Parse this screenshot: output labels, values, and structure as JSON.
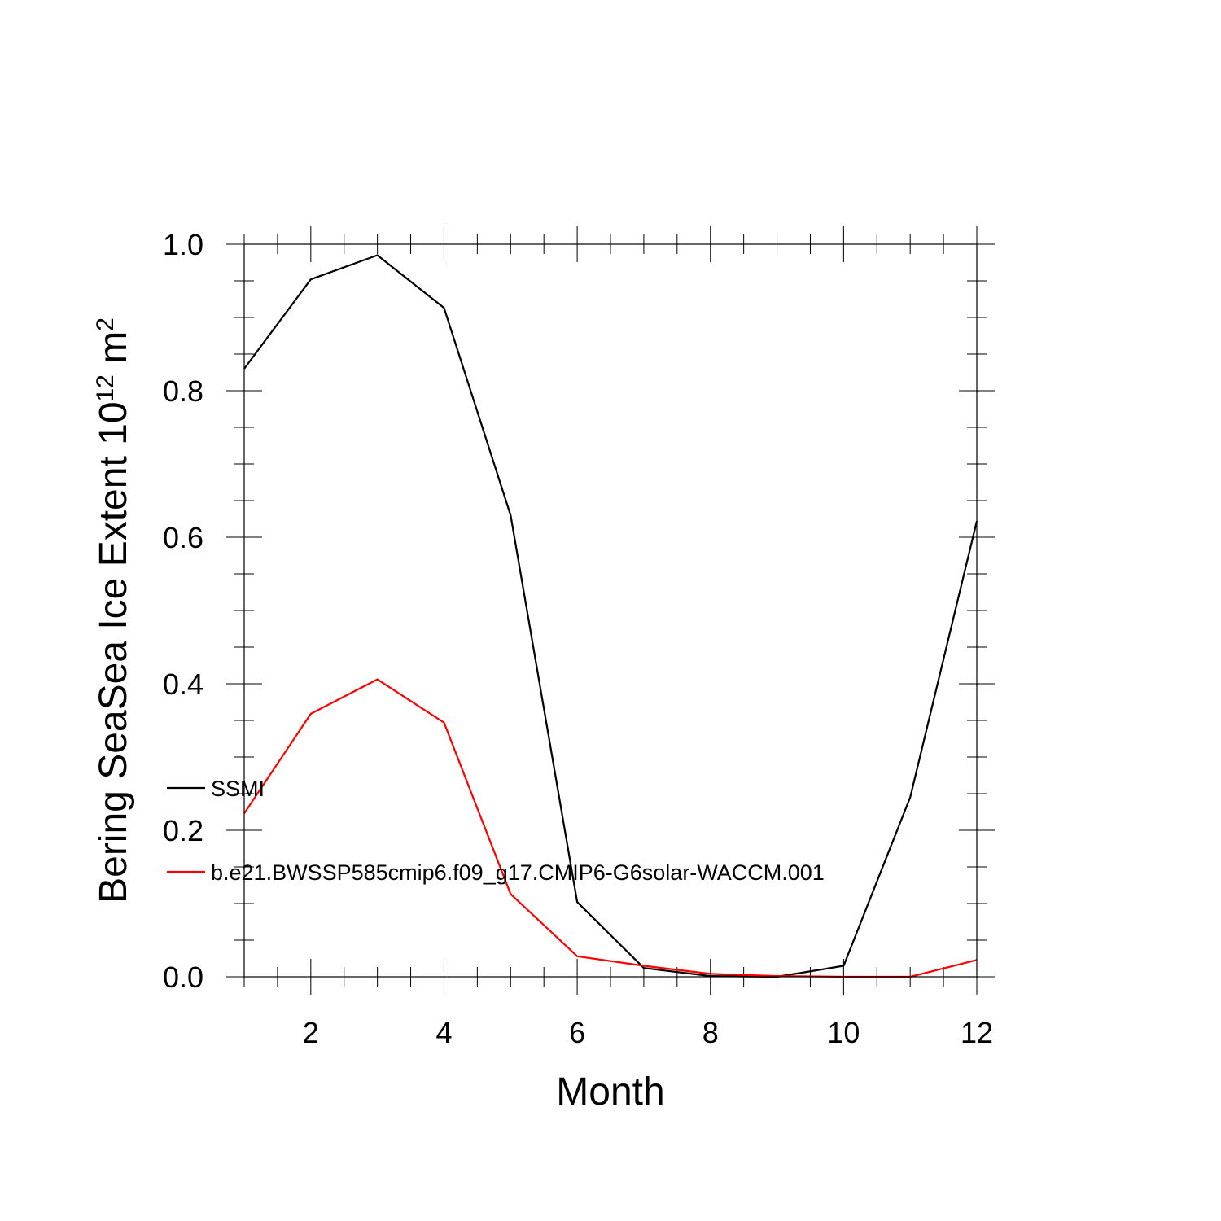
{
  "chart_data": {
    "type": "line",
    "title": "",
    "xlabel": "Month",
    "ylabel_main": "Bering SeaSea Ice Extent 10",
    "ylabel_exponent": "12",
    "ylabel_unit": " m",
    "ylabel_unit_exponent": "2",
    "xlim": [
      1,
      12
    ],
    "ylim": [
      0,
      1
    ],
    "x": [
      1,
      2,
      3,
      4,
      5,
      6,
      7,
      8,
      9,
      10,
      11,
      12
    ],
    "x_ticks": [
      2,
      4,
      6,
      8,
      10,
      12
    ],
    "x_tick_labels": [
      "2",
      "4",
      "6",
      "8",
      "10",
      "12"
    ],
    "y_ticks": [
      0,
      0.2,
      0.4,
      0.6,
      0.8,
      1.0
    ],
    "y_tick_labels": [
      "0.0",
      "0.2",
      "0.4",
      "0.6",
      "0.8",
      "1.0"
    ],
    "grid": false,
    "legend_position": "left, lower-middle",
    "series": [
      {
        "name": "SSMI",
        "color": "#000000",
        "values": [
          0.83,
          0.952,
          0.985,
          0.913,
          0.63,
          0.102,
          0.012,
          0.001,
          0.0,
          0.015,
          0.245,
          0.622
        ]
      },
      {
        "name": "b.e21.BWSSP585cmip6.f09_g17.CMIP6-G6solar-WACCM.001",
        "color": "#ff0000",
        "values": [
          0.223,
          0.359,
          0.406,
          0.347,
          0.113,
          0.028,
          0.015,
          0.004,
          0.001,
          0.0,
          0.0,
          0.023
        ]
      }
    ]
  }
}
